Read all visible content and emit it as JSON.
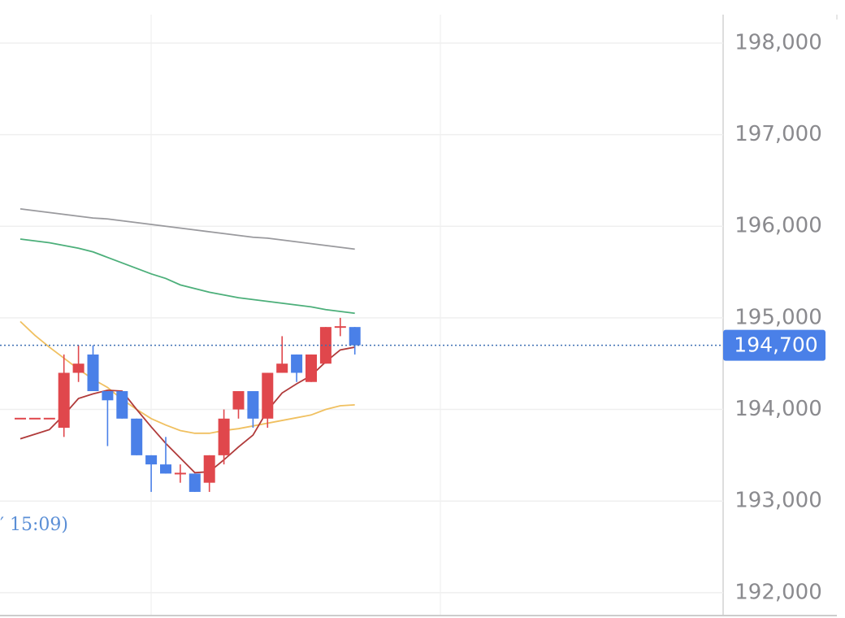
{
  "chart_data": {
    "type": "candlestick",
    "annotation": "′ 15:09)",
    "up_color": "#e0474c",
    "down_color": "#4a80e8",
    "candles": {
      "open": [
        193900,
        193900,
        193900,
        193800,
        194400,
        194600,
        194200,
        194200,
        193900,
        193500,
        193400,
        193300,
        193300,
        193200,
        193500,
        194000,
        194200,
        193900,
        194400,
        194600,
        194300,
        194500,
        194900,
        194900
      ],
      "close": [
        193900,
        193900,
        193900,
        194400,
        194500,
        194200,
        194100,
        193900,
        193500,
        193400,
        193300,
        193300,
        193100,
        193500,
        193900,
        194200,
        193900,
        194400,
        194500,
        194400,
        194600,
        194900,
        194900,
        194700
      ],
      "high": [
        193900,
        193900,
        193900,
        194600,
        194700,
        194700,
        194200,
        194200,
        193900,
        193500,
        193700,
        193400,
        193300,
        193500,
        194000,
        194200,
        194200,
        194400,
        194800,
        194600,
        194600,
        194900,
        195000,
        194900
      ],
      "low": [
        193900,
        193900,
        193900,
        193700,
        194300,
        194200,
        193600,
        193900,
        193500,
        193100,
        193300,
        193200,
        193100,
        193100,
        193400,
        193900,
        193800,
        193800,
        194400,
        194300,
        194300,
        194500,
        194800,
        194600
      ]
    },
    "series": [
      {
        "color": "#9a9a9e",
        "values": [
          196190,
          196170,
          196150,
          196130,
          196110,
          196090,
          196080,
          196060,
          196040,
          196020,
          196000,
          195980,
          195960,
          195940,
          195920,
          195900,
          195880,
          195870,
          195850,
          195830,
          195810,
          195790,
          195770,
          195750
        ]
      },
      {
        "color": "#4caf7a",
        "values": [
          195860,
          195840,
          195820,
          195790,
          195760,
          195720,
          195660,
          195600,
          195540,
          195480,
          195430,
          195360,
          195320,
          195280,
          195250,
          195220,
          195200,
          195180,
          195160,
          195140,
          195120,
          195090,
          195070,
          195050
        ]
      },
      {
        "color": "#f0c060",
        "values": [
          194960,
          194810,
          194680,
          194560,
          194440,
          194330,
          194240,
          194110,
          194000,
          193900,
          193830,
          193770,
          193740,
          193740,
          193770,
          193790,
          193820,
          193850,
          193880,
          193910,
          193940,
          194000,
          194040,
          194050
        ]
      },
      {
        "color": "#b03a3a",
        "values": [
          193680,
          193730,
          193780,
          193940,
          194120,
          194170,
          194210,
          194200,
          194000,
          193810,
          193630,
          193470,
          193310,
          193320,
          193450,
          193590,
          193720,
          193990,
          194180,
          194280,
          194370,
          194520,
          194650,
          194680
        ]
      }
    ],
    "last_price": {
      "value": 194700,
      "label": "194,700"
    },
    "ylim": [
      191750,
      198470
    ],
    "yticks": [
      {
        "value": 192000,
        "label": "192,000"
      },
      {
        "value": 193000,
        "label": "193,000"
      },
      {
        "value": 194000,
        "label": "194,000"
      },
      {
        "value": 195000,
        "label": "195,000"
      },
      {
        "value": 196000,
        "label": "196,000"
      },
      {
        "value": 197000,
        "label": "197,000"
      },
      {
        "value": 198000,
        "label": "198,000"
      }
    ],
    "grid": true
  }
}
